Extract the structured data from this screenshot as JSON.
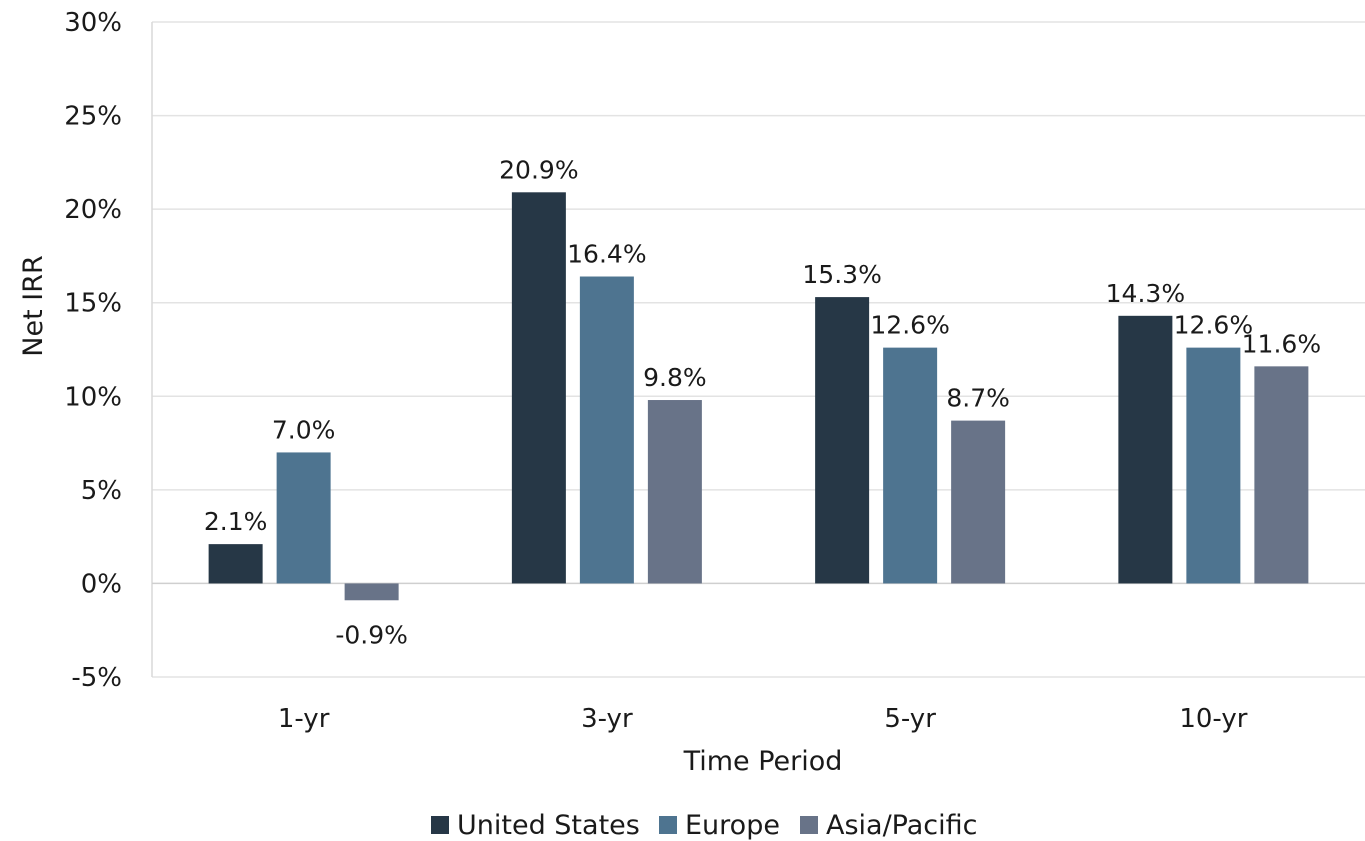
{
  "chart_data": {
    "type": "bar",
    "xlabel": "Time Period",
    "ylabel": "Net IRR",
    "categories": [
      "1-yr",
      "3-yr",
      "5-yr",
      "10-yr"
    ],
    "ylim": [
      -5,
      30
    ],
    "yticks": [
      -5,
      0,
      5,
      10,
      15,
      20,
      25,
      30
    ],
    "ytick_labels": [
      "-5%",
      "0%",
      "5%",
      "10%",
      "15%",
      "20%",
      "25%",
      "30%"
    ],
    "grid": true,
    "legend_position": "bottom",
    "series": [
      {
        "name": "United States",
        "color": "#263746",
        "values": [
          2.1,
          20.9,
          15.3,
          14.3
        ],
        "labels": [
          "2.1%",
          "20.9%",
          "15.3%",
          "14.3%"
        ]
      },
      {
        "name": "Europe",
        "color": "#4e7490",
        "values": [
          7.0,
          16.4,
          12.6,
          12.6
        ],
        "labels": [
          "7.0%",
          "16.4%",
          "12.6%",
          "12.6%"
        ]
      },
      {
        "name": "Asia/Pacific",
        "color": "#687388",
        "values": [
          -0.9,
          9.8,
          8.7,
          11.6
        ],
        "labels": [
          "-0.9%",
          "9.8%",
          "8.7%",
          "11.6%"
        ]
      }
    ]
  }
}
